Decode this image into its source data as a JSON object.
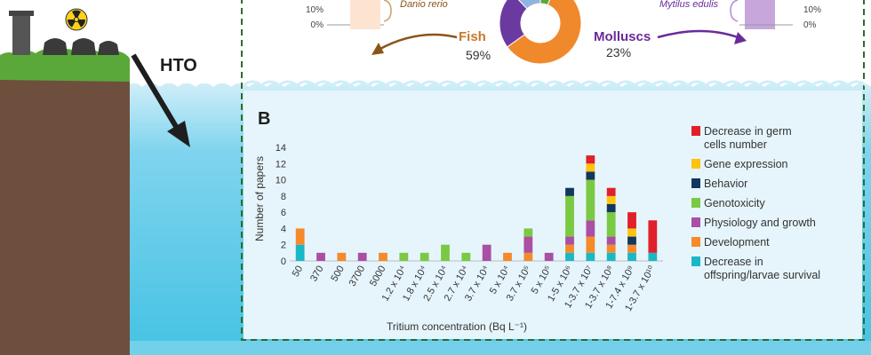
{
  "colors": {
    "sky": "#ffffff",
    "water": "#45c2e3",
    "water_light": "#cfeef8",
    "soil": "#6e4f3e",
    "grass": "#5aa83a",
    "arrow": "#1e1e1e",
    "dashed_border": "#2e6b2e",
    "fish": "#f0892c",
    "molluscs": "#6a3aa0",
    "arrow_fish": "#8a5418",
    "arrow_molluscs": "#6a2a9a"
  },
  "icons": [
    "nuclear-plant-icon",
    "radiation-icon",
    "hto-arrow-icon"
  ],
  "left_label": "HTO",
  "top": {
    "left_ticks": [
      "10%",
      "0%"
    ],
    "left_species": "Danio rerio",
    "right_species": "Mytilus edulis",
    "right_ticks": [
      "10%",
      "0%"
    ],
    "donut": {
      "slices": [
        {
          "name": "Fish",
          "percent": 59,
          "color": "#f0892c"
        },
        {
          "name": "Molluscs",
          "percent": 23,
          "color": "#6a3aa0"
        },
        {
          "name": "",
          "percent": 12,
          "color": "#8fb4e0"
        },
        {
          "name": "",
          "percent": 6,
          "color": "#5aa83a"
        }
      ]
    },
    "fish_label": "Fish",
    "fish_pct": "59%",
    "molluscs_label": "Molluscs",
    "molluscs_pct": "23%"
  },
  "panel_letter": "B",
  "chart_data": {
    "type": "bar",
    "stacked": true,
    "title": "",
    "ylabel": "Number of papers",
    "xlabel": "Tritium concentration (Bq L⁻¹)",
    "ylim": [
      0,
      14
    ],
    "yticks": [
      "0",
      "2",
      "4",
      "6",
      "8",
      "10",
      "12",
      "14"
    ],
    "grid": false,
    "legend_position": "right",
    "categories": [
      "50",
      "370",
      "500",
      "3700",
      "5000",
      "1.2 x 10⁴",
      "1.8 x 10⁴",
      "2.5 x 10⁴",
      "2.7 x 10⁴",
      "3.7 x 10⁴",
      "5 x 10⁴",
      "3.7 x 10⁵",
      "5 x 10⁵",
      "1-5 x 10⁶",
      "1-3.7 x 10⁷",
      "1-3.7 x 10⁸",
      "1-7.4 x 10⁹",
      "1-3.7 x 10¹⁰"
    ],
    "series": [
      {
        "name": "Decrease in offspring/larvae survival",
        "color": "#19b8c6",
        "values": [
          2,
          0,
          0,
          0,
          0,
          0,
          0,
          0,
          0,
          0,
          0,
          0,
          0,
          1,
          1,
          1,
          1,
          1
        ]
      },
      {
        "name": "Development",
        "color": "#f58a2a",
        "values": [
          2,
          0,
          1,
          0,
          1,
          0,
          0,
          0,
          0,
          0,
          1,
          1,
          0,
          1,
          2,
          1,
          1,
          0
        ]
      },
      {
        "name": "Physiology and growth",
        "color": "#a94fa4",
        "values": [
          0,
          1,
          0,
          1,
          0,
          0,
          0,
          0,
          0,
          2,
          0,
          2,
          1,
          1,
          2,
          1,
          0,
          0
        ]
      },
      {
        "name": "Genotoxicity",
        "color": "#7ac943",
        "values": [
          0,
          0,
          0,
          0,
          0,
          1,
          1,
          2,
          1,
          0,
          0,
          1,
          0,
          5,
          5,
          3,
          0,
          0
        ]
      },
      {
        "name": "Behavior",
        "color": "#12375e",
        "values": [
          0,
          0,
          0,
          0,
          0,
          0,
          0,
          0,
          0,
          0,
          0,
          0,
          0,
          1,
          1,
          1,
          1,
          0
        ]
      },
      {
        "name": "Gene expression",
        "color": "#ffc20e",
        "values": [
          0,
          0,
          0,
          0,
          0,
          0,
          0,
          0,
          0,
          0,
          0,
          0,
          0,
          0,
          1,
          1,
          1,
          0
        ]
      },
      {
        "name": "Decrease in germ cells number",
        "color": "#e0202a",
        "values": [
          0,
          0,
          0,
          0,
          0,
          0,
          0,
          0,
          0,
          0,
          0,
          0,
          0,
          0,
          1,
          1,
          2,
          4
        ]
      }
    ]
  },
  "legend": [
    {
      "lines": [
        "Decrease in germ",
        "cells number"
      ],
      "color": "#e0202a"
    },
    {
      "lines": [
        "Gene expression"
      ],
      "color": "#ffc20e"
    },
    {
      "lines": [
        "Behavior"
      ],
      "color": "#12375e"
    },
    {
      "lines": [
        "Genotoxicity"
      ],
      "color": "#7ac943"
    },
    {
      "lines": [
        "Physiology and growth"
      ],
      "color": "#a94fa4"
    },
    {
      "lines": [
        "Development"
      ],
      "color": "#f58a2a"
    },
    {
      "lines": [
        "Decrease in",
        "offspring/larvae survival"
      ],
      "color": "#19b8c6"
    }
  ]
}
